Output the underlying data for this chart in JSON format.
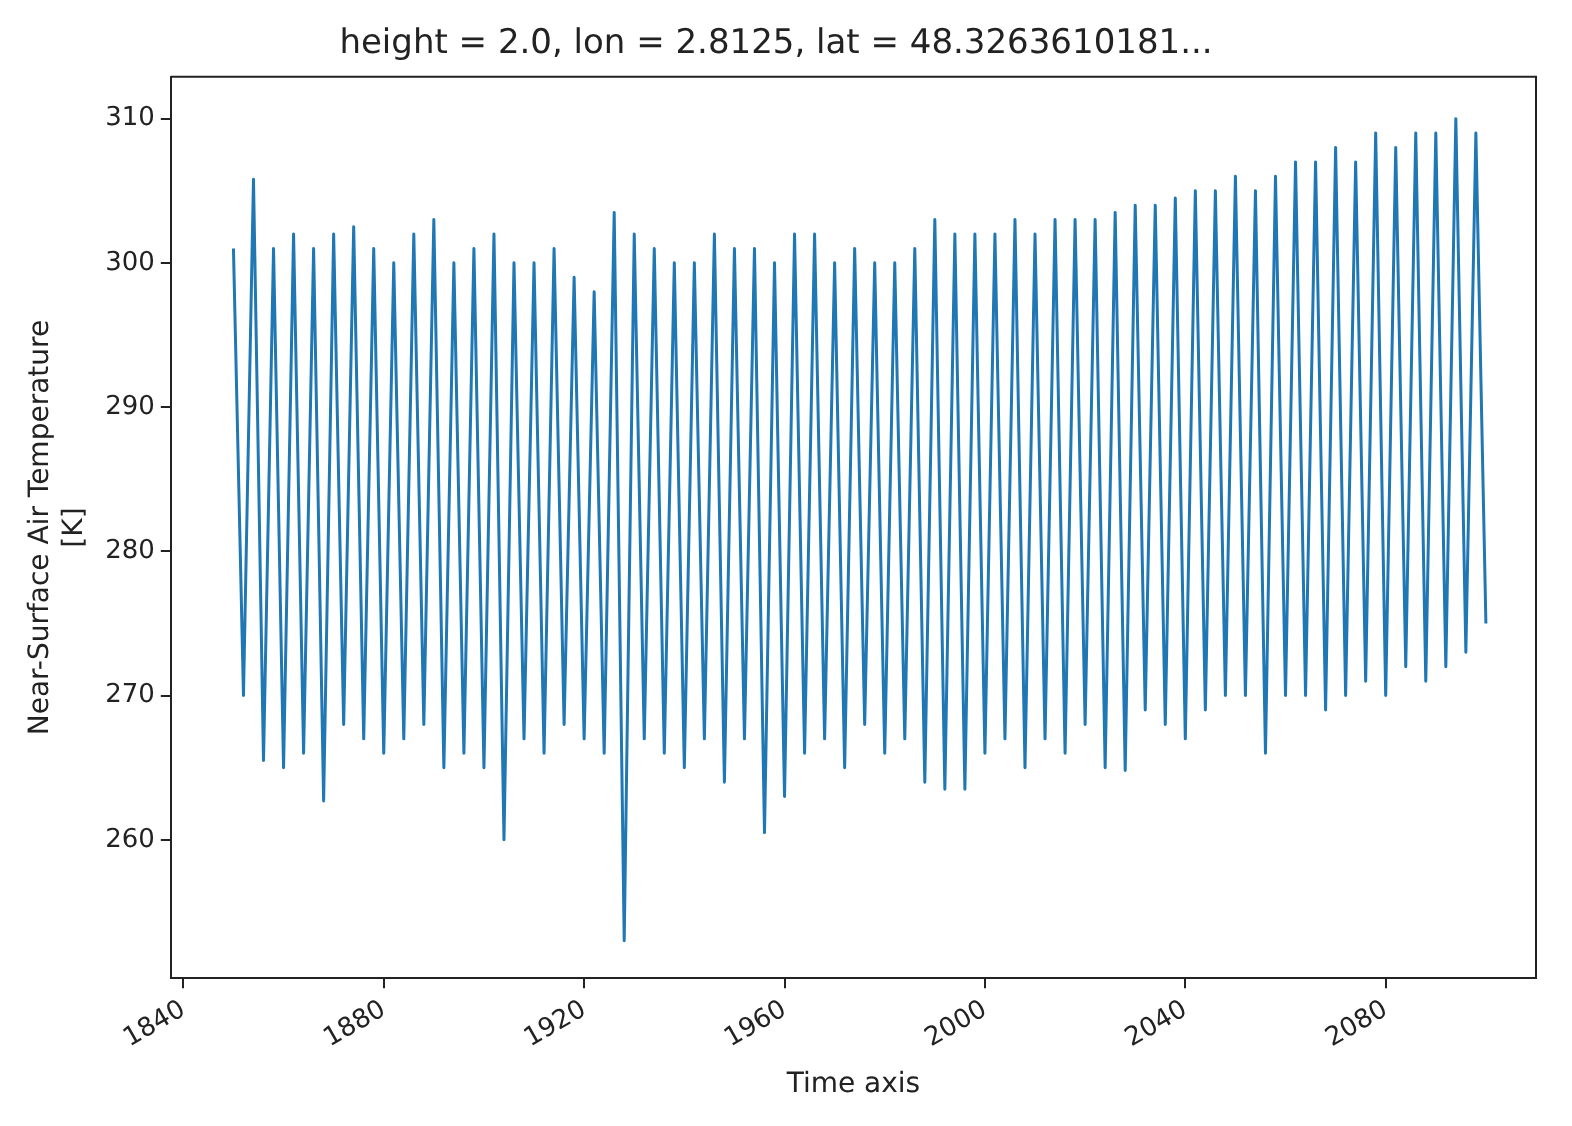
{
  "chart_data": {
    "type": "line",
    "title": "height = 2.0, lon = 2.8125, lat = 48.3263610181...",
    "xlabel": "Time axis",
    "ylabel": "Near-Surface Air Temperature [K]",
    "x": [
      1850,
      1852,
      1854,
      1856,
      1858,
      1860,
      1862,
      1864,
      1866,
      1868,
      1870,
      1872,
      1874,
      1876,
      1878,
      1880,
      1882,
      1884,
      1886,
      1888,
      1890,
      1892,
      1894,
      1896,
      1898,
      1900,
      1902,
      1904,
      1906,
      1908,
      1910,
      1912,
      1914,
      1916,
      1918,
      1920,
      1922,
      1924,
      1926,
      1928,
      1930,
      1932,
      1934,
      1936,
      1938,
      1940,
      1942,
      1944,
      1946,
      1948,
      1950,
      1952,
      1954,
      1956,
      1958,
      1960,
      1962,
      1964,
      1966,
      1968,
      1970,
      1972,
      1974,
      1976,
      1978,
      1980,
      1982,
      1984,
      1986,
      1988,
      1990,
      1992,
      1994,
      1996,
      1998,
      2000,
      2002,
      2004,
      2006,
      2008,
      2010,
      2012,
      2014,
      2016,
      2018,
      2020,
      2022,
      2024,
      2026,
      2028,
      2030,
      2032,
      2034,
      2036,
      2038,
      2040,
      2042,
      2044,
      2046,
      2048,
      2050,
      2052,
      2054,
      2056,
      2058,
      2060,
      2062,
      2064,
      2066,
      2068,
      2070,
      2072,
      2074,
      2076,
      2078,
      2080,
      2082,
      2084,
      2086,
      2088,
      2090,
      2092,
      2094,
      2096,
      2098,
      2100
    ],
    "series": [
      {
        "color": "#1f77b4",
        "values": [
          301,
          270,
          305.8,
          265.5,
          301,
          265,
          302,
          266,
          301,
          262.7,
          302,
          268,
          302.5,
          267,
          301,
          266,
          300,
          267,
          302,
          268,
          303,
          265,
          300,
          266,
          301,
          265,
          302,
          260,
          300,
          267,
          300,
          266,
          301,
          268,
          299,
          267,
          298,
          266,
          303.5,
          253,
          302,
          267,
          301,
          266,
          300,
          265,
          300,
          267,
          302,
          264,
          301,
          267,
          301,
          260.5,
          300,
          263,
          302,
          266,
          302,
          267,
          300,
          265,
          301,
          268,
          300,
          266,
          300,
          267,
          301,
          264,
          303,
          263.5,
          302,
          263.5,
          302,
          266,
          302,
          267,
          303,
          265,
          302,
          267,
          303,
          266,
          303,
          268,
          303,
          265,
          303.5,
          264.8,
          304,
          269,
          304,
          268,
          304.5,
          267,
          305,
          269,
          305,
          270,
          306,
          270,
          305,
          266,
          306,
          270,
          307,
          270,
          307,
          269,
          308,
          270,
          307,
          271,
          309,
          270,
          308,
          272,
          309,
          271,
          309,
          272,
          310,
          273,
          309,
          275
        ]
      }
    ],
    "xlim": [
      1837.5,
      2110
    ],
    "xticks": [
      1840,
      1880,
      1920,
      1960,
      2000,
      2040,
      2080
    ],
    "ylim": [
      250.4,
      312.9
    ],
    "yticks": [
      260,
      270,
      280,
      290,
      300,
      310
    ],
    "grid": false,
    "legend": false,
    "marker": "none",
    "line_style": "solid"
  }
}
